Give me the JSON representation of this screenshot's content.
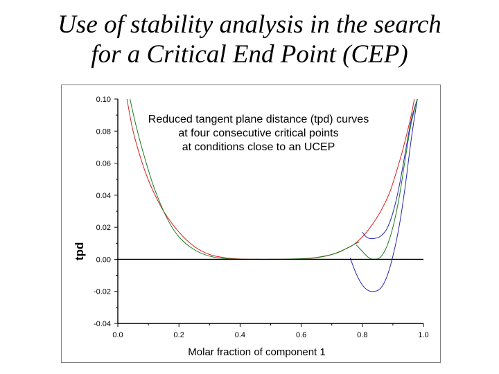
{
  "slide": {
    "title_line1": "Use of stability analysis in the search",
    "title_line2": "for a Critical End Point (CEP)"
  },
  "chart_data": {
    "type": "line",
    "title_lines": [
      "Reduced tangent plane distance (tpd) curves",
      "at four consecutive critical points",
      "at conditions close to an UCEP"
    ],
    "xlabel": "Molar fraction of component 1",
    "ylabel": "tpd",
    "xlim": [
      0.0,
      1.0
    ],
    "ylim": [
      -0.04,
      0.1
    ],
    "xticks": [
      "0.0",
      "0.2",
      "0.4",
      "0.6",
      "0.8",
      "1.0"
    ],
    "yticks": [
      "0.10",
      "0.08",
      "0.06",
      "0.04",
      "0.02",
      "0.00",
      "-0.02",
      "-0.04"
    ],
    "zero_line": true,
    "grid": false,
    "legend": "none",
    "colors": {
      "red": "#d62020",
      "blue": "#2626b0",
      "green": "#1f7a1f",
      "axis": "#000000"
    },
    "series": [
      {
        "color": "red",
        "x": [
          0.03,
          0.05,
          0.08,
          0.11,
          0.15,
          0.2,
          0.25,
          0.3,
          0.35,
          0.4,
          0.45,
          0.5,
          0.55,
          0.6,
          0.65,
          0.7,
          0.74,
          0.77,
          0.8,
          0.83,
          0.86,
          0.89,
          0.92,
          0.94,
          0.96,
          0.97
        ],
        "y": [
          0.1,
          0.08,
          0.06,
          0.045,
          0.03,
          0.017,
          0.008,
          0.003,
          0.001,
          0.0002,
          0.0,
          0.0,
          0.0001,
          0.0003,
          0.001,
          0.003,
          0.006,
          0.009,
          0.014,
          0.021,
          0.03,
          0.042,
          0.06,
          0.074,
          0.09,
          0.1
        ]
      },
      {
        "color": "blue",
        "x": [
          0.76,
          0.78,
          0.8,
          0.82,
          0.84,
          0.86,
          0.88,
          0.9,
          0.92,
          0.94,
          0.96,
          0.98
        ],
        "y": [
          0.001,
          -0.009,
          -0.016,
          -0.0195,
          -0.02,
          -0.018,
          -0.011,
          0.002,
          0.02,
          0.045,
          0.075,
          0.1
        ]
      },
      {
        "color": "blue",
        "x": [
          0.8,
          0.81,
          0.82,
          0.84,
          0.86,
          0.88,
          0.9,
          0.92,
          0.94,
          0.96,
          0.98
        ],
        "y": [
          0.017,
          0.0145,
          0.0132,
          0.013,
          0.0145,
          0.019,
          0.029,
          0.045,
          0.066,
          0.087,
          0.1
        ]
      },
      {
        "color": "green",
        "x": [
          0.78,
          0.8,
          0.82,
          0.84,
          0.86,
          0.88,
          0.9,
          0.92,
          0.94,
          0.96,
          0.98
        ],
        "y": [
          0.009,
          0.005,
          0.0012,
          0.0,
          0.0015,
          0.008,
          0.02,
          0.038,
          0.062,
          0.085,
          0.1
        ]
      },
      {
        "color": "green",
        "x": [
          0.04,
          0.06,
          0.09,
          0.12,
          0.16,
          0.2,
          0.25,
          0.3,
          0.35,
          0.4,
          0.45,
          0.5,
          0.55,
          0.6,
          0.65,
          0.7,
          0.73,
          0.75,
          0.77,
          0.79
        ],
        "y": [
          0.1,
          0.083,
          0.062,
          0.044,
          0.026,
          0.014,
          0.006,
          0.002,
          0.0005,
          0.0,
          0.0,
          0.0,
          0.0001,
          0.0004,
          0.0012,
          0.003,
          0.005,
          0.007,
          0.009,
          0.011
        ]
      }
    ]
  }
}
